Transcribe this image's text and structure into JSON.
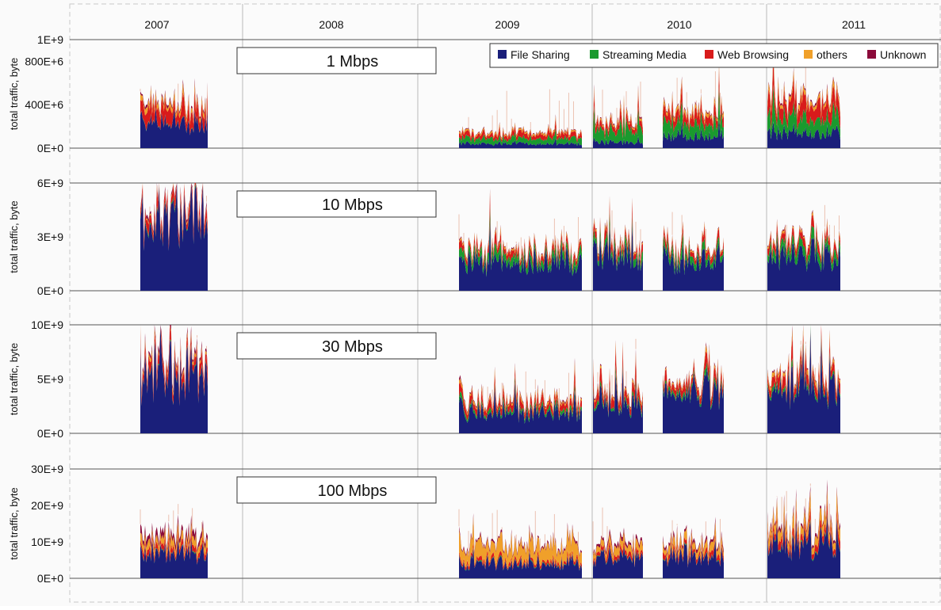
{
  "chart_data": {
    "type": "area",
    "stacked": true,
    "x_axis_labels": [
      "2007",
      "2008",
      "2009",
      "2010",
      "2011"
    ],
    "ylabel": "total traffic, byte",
    "legend": {
      "placement": "top-right",
      "entries": [
        {
          "name": "File Sharing",
          "color": "#1a1f7a"
        },
        {
          "name": "Streaming Media",
          "color": "#1a9a2e"
        },
        {
          "name": "Web Browsing",
          "color": "#d81b1b"
        },
        {
          "name": "others",
          "color": "#f0a02a"
        },
        {
          "name": "Unknown",
          "color": "#8b0a3a"
        }
      ]
    },
    "panels": [
      {
        "title": "1 Mbps",
        "yticks": [
          "1E+9",
          "800E+6",
          "400E+6",
          "0E+0"
        ],
        "ytick_values": [
          1000000000,
          800000000,
          400000000,
          0
        ],
        "ylim": [
          0,
          1000000000
        ],
        "segments": [
          {
            "label": "2007",
            "values": {
              "File Sharing": 230000000,
              "Streaming Media": 5000000,
              "Web Browsing": 120000000,
              "others": 40000000,
              "Unknown": 20000000
            }
          },
          {
            "label": "2009",
            "values": {
              "File Sharing": 40000000,
              "Streaming Media": 50000000,
              "Web Browsing": 40000000,
              "others": 15000000,
              "Unknown": 5000000
            }
          },
          {
            "label": "2010a",
            "values": {
              "File Sharing": 50000000,
              "Streaming Media": 110000000,
              "Web Browsing": 50000000,
              "others": 20000000,
              "Unknown": 10000000
            }
          },
          {
            "label": "2010b",
            "values": {
              "File Sharing": 110000000,
              "Streaming Media": 120000000,
              "Web Browsing": 90000000,
              "others": 30000000,
              "Unknown": 10000000
            }
          },
          {
            "label": "2011",
            "values": {
              "File Sharing": 140000000,
              "Streaming Media": 140000000,
              "Web Browsing": 140000000,
              "others": 40000000,
              "Unknown": 15000000
            }
          }
        ]
      },
      {
        "title": "10 Mbps",
        "yticks": [
          "6E+9",
          "3E+9",
          "0E+0"
        ],
        "ytick_values": [
          6000000000,
          3000000000,
          0
        ],
        "ylim": [
          0,
          6000000000
        ],
        "segments": [
          {
            "label": "2007",
            "values": {
              "File Sharing": 3700000000,
              "Streaming Media": 80000000,
              "Web Browsing": 400000000,
              "others": 80000000,
              "Unknown": 120000000
            }
          },
          {
            "label": "2009",
            "values": {
              "File Sharing": 1600000000,
              "Streaming Media": 400000000,
              "Web Browsing": 300000000,
              "others": 100000000,
              "Unknown": 50000000
            }
          },
          {
            "label": "2010a",
            "values": {
              "File Sharing": 1900000000,
              "Streaming Media": 350000000,
              "Web Browsing": 350000000,
              "others": 100000000,
              "Unknown": 50000000
            }
          },
          {
            "label": "2010b",
            "values": {
              "File Sharing": 1600000000,
              "Streaming Media": 350000000,
              "Web Browsing": 300000000,
              "others": 80000000,
              "Unknown": 40000000
            }
          },
          {
            "label": "2011",
            "values": {
              "File Sharing": 1900000000,
              "Streaming Media": 450000000,
              "Web Browsing": 350000000,
              "others": 100000000,
              "Unknown": 50000000
            }
          }
        ]
      },
      {
        "title": "30 Mbps",
        "yticks": [
          "10E+9",
          "5E+9",
          "0E+0"
        ],
        "ytick_values": [
          10000000000,
          5000000000,
          0
        ],
        "ylim": [
          0,
          10000000000
        ],
        "segments": [
          {
            "label": "2007",
            "values": {
              "File Sharing": 5200000000,
              "Streaming Media": 100000000,
              "Web Browsing": 800000000,
              "others": 300000000,
              "Unknown": 300000000
            }
          },
          {
            "label": "2009",
            "values": {
              "File Sharing": 1900000000,
              "Streaming Media": 300000000,
              "Web Browsing": 600000000,
              "others": 200000000,
              "Unknown": 100000000
            }
          },
          {
            "label": "2010a",
            "values": {
              "File Sharing": 2700000000,
              "Streaming Media": 300000000,
              "Web Browsing": 700000000,
              "others": 200000000,
              "Unknown": 100000000
            }
          },
          {
            "label": "2010b",
            "values": {
              "File Sharing": 3600000000,
              "Streaming Media": 300000000,
              "Web Browsing": 700000000,
              "others": 200000000,
              "Unknown": 100000000
            }
          },
          {
            "label": "2011",
            "values": {
              "File Sharing": 4300000000,
              "Streaming Media": 300000000,
              "Web Browsing": 800000000,
              "others": 300000000,
              "Unknown": 100000000
            }
          }
        ]
      },
      {
        "title": "100 Mbps",
        "yticks": [
          "30E+9",
          "20E+9",
          "10E+9",
          "0E+0"
        ],
        "ytick_values": [
          30000000000,
          20000000000,
          10000000000,
          0
        ],
        "ylim": [
          0,
          30000000000
        ],
        "segments": [
          {
            "label": "2007",
            "values": {
              "File Sharing": 7000000000,
              "Streaming Media": 200000000,
              "Web Browsing": 1500000000,
              "others": 2000000000,
              "Unknown": 1500000000
            }
          },
          {
            "label": "2009",
            "values": {
              "File Sharing": 4000000000,
              "Streaming Media": 200000000,
              "Web Browsing": 800000000,
              "others": 4000000000,
              "Unknown": 500000000
            }
          },
          {
            "label": "2010a",
            "values": {
              "File Sharing": 6000000000,
              "Streaming Media": 200000000,
              "Web Browsing": 1200000000,
              "others": 2000000000,
              "Unknown": 800000000
            }
          },
          {
            "label": "2010b",
            "values": {
              "File Sharing": 6000000000,
              "Streaming Media": 200000000,
              "Web Browsing": 1200000000,
              "others": 2000000000,
              "Unknown": 800000000
            }
          },
          {
            "label": "2011",
            "values": {
              "File Sharing": 9500000000,
              "Streaming Media": 300000000,
              "Web Browsing": 1800000000,
              "others": 2500000000,
              "Unknown": 800000000
            }
          }
        ]
      }
    ],
    "grid": false
  }
}
